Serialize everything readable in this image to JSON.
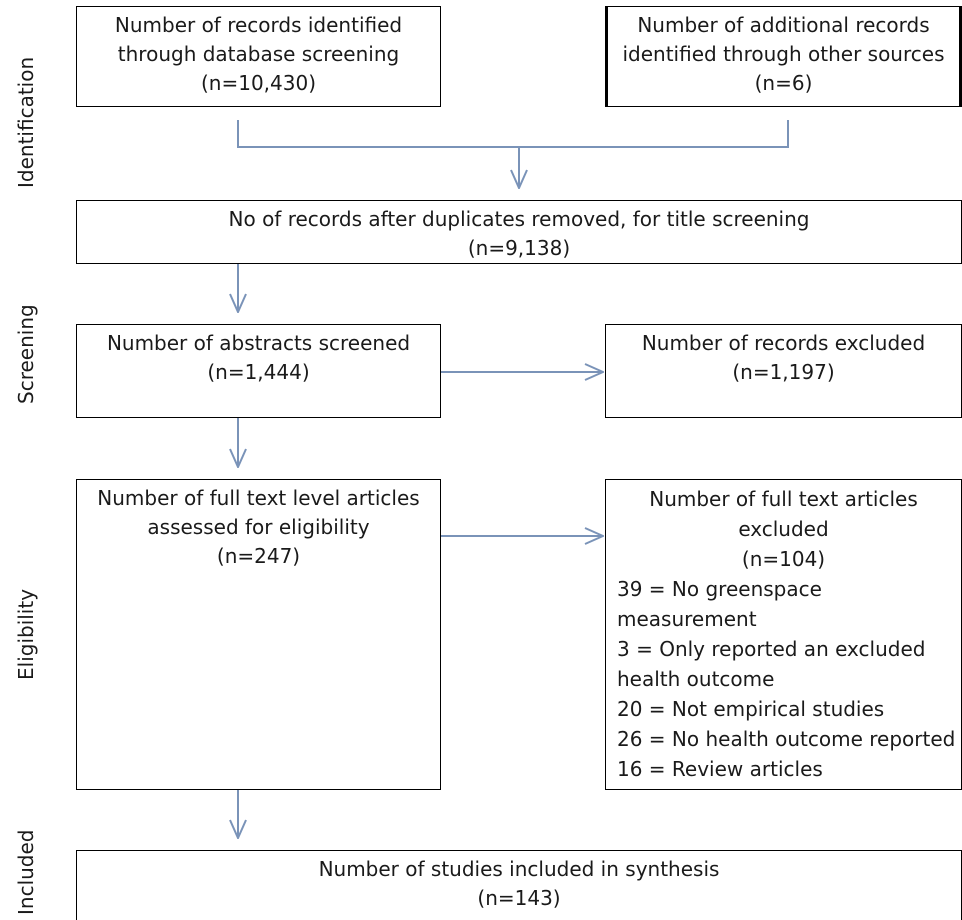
{
  "stages": {
    "identification": "Identification",
    "screening": "Screening",
    "eligibility": "Eligibility",
    "included": "Included"
  },
  "boxes": {
    "database_records": {
      "lines": [
        "Number of records identified",
        "through database screening",
        "(n=10,430)"
      ]
    },
    "other_sources": {
      "lines": [
        "Number of additional records",
        "identified through other sources",
        "(n=6)"
      ]
    },
    "after_duplicates": {
      "lines": [
        "No of records after duplicates removed, for title screening",
        "(n=9,138)"
      ]
    },
    "abstracts_screened": {
      "lines": [
        "Number of abstracts screened",
        "(n=1,444)"
      ]
    },
    "records_excluded": {
      "lines": [
        "Number of records excluded",
        "(n=1,197)"
      ]
    },
    "full_text_assessed": {
      "lines": [
        "Number of full text level articles",
        "assessed for eligibility",
        "(n=247)"
      ]
    },
    "full_text_excluded": {
      "heading": [
        "Number of full text articles",
        "excluded",
        "(n=104)"
      ],
      "reasons": [
        "39 = No greenspace",
        "measurement",
        "3 = Only reported an excluded",
        "health outcome",
        "20 = Not empirical studies",
        "26 = No health outcome reported",
        "16 = Review articles"
      ]
    },
    "included_synthesis": {
      "lines": [
        "Number of studies included in synthesis",
        "(n=143)"
      ]
    }
  },
  "colors": {
    "connector": "#7a93b8",
    "border": "#000000"
  }
}
